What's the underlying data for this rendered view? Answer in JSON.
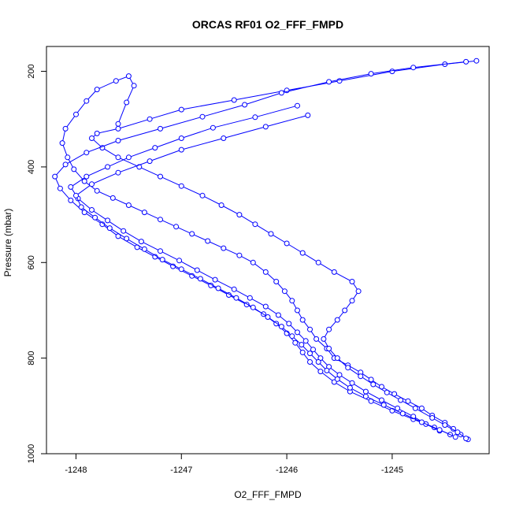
{
  "chart_data": {
    "type": "line",
    "title": "ORCAS RF01 O2_FFF_FMPD",
    "xlabel": "O2_FFF_FMPD",
    "ylabel": "Pressure (mbar)",
    "xlim": [
      -1248.28,
      -1244.08
    ],
    "ylim": [
      1000,
      148
    ],
    "y_reversed": true,
    "x_ticks": [
      -1248,
      -1247,
      -1246,
      -1245
    ],
    "y_ticks": [
      200,
      400,
      600,
      800,
      1000
    ],
    "marker": "open-circle",
    "line_color": "#0000ff",
    "grid": false,
    "legend": "none",
    "series": [
      {
        "x": [
          -1244.28,
          -1244.35,
          -1244.42,
          -1244.5,
          -1244.62,
          -1244.72,
          -1244.85,
          -1244.98,
          -1245.1,
          -1245.2,
          -1245.3,
          -1245.42,
          -1245.55,
          -1245.62,
          -1245.72,
          -1245.78,
          -1245.85,
          -1245.9,
          -1245.95,
          -1246.02,
          -1246.1,
          -1246.2,
          -1246.32,
          -1246.45,
          -1246.6,
          -1246.75,
          -1246.9,
          -1247.05,
          -1247.2,
          -1247.35,
          -1247.5,
          -1247.65,
          -1247.8,
          -1247.92,
          -1248.02,
          -1248.08,
          -1248.13,
          -1248.1,
          -1248.0,
          -1247.9,
          -1247.8,
          -1247.62,
          -1247.5,
          -1247.45,
          -1247.52,
          -1247.6
        ],
        "y": [
          970,
          960,
          948,
          935,
          920,
          905,
          890,
          875,
          860,
          845,
          830,
          815,
          800,
          780,
          760,
          740,
          720,
          700,
          680,
          660,
          640,
          620,
          600,
          585,
          570,
          555,
          540,
          525,
          510,
          495,
          480,
          465,
          450,
          430,
          405,
          380,
          350,
          320,
          290,
          262,
          238,
          220,
          210,
          230,
          265,
          310
        ]
      },
      {
        "x": [
          -1244.3,
          -1244.38,
          -1244.5,
          -1244.62,
          -1244.78,
          -1244.92,
          -1245.05,
          -1245.18,
          -1245.3,
          -1245.42,
          -1245.52,
          -1245.6,
          -1245.65,
          -1245.6,
          -1245.52,
          -1245.45,
          -1245.38,
          -1245.32,
          -1245.38,
          -1245.55,
          -1245.7,
          -1245.85,
          -1246.0,
          -1246.15,
          -1246.3,
          -1246.45,
          -1246.62,
          -1246.8,
          -1247.0,
          -1247.2,
          -1247.4,
          -1247.6,
          -1247.75,
          -1247.85,
          -1247.8,
          -1247.6,
          -1247.3,
          -1247.0,
          -1246.5,
          -1246.0,
          -1245.5,
          -1245.0,
          -1244.5,
          -1244.2
        ],
        "y": [
          968,
          955,
          940,
          925,
          905,
          888,
          872,
          855,
          838,
          820,
          800,
          780,
          760,
          740,
          720,
          700,
          680,
          660,
          640,
          620,
          600,
          580,
          560,
          540,
          520,
          500,
          480,
          460,
          440,
          420,
          400,
          380,
          360,
          340,
          330,
          320,
          300,
          280,
          260,
          240,
          220,
          200,
          185,
          178
        ]
      },
      {
        "x": [
          -1244.45,
          -1244.6,
          -1244.8,
          -1245.0,
          -1245.2,
          -1245.4,
          -1245.55,
          -1245.68,
          -1245.78,
          -1245.85,
          -1245.92,
          -1246.0,
          -1246.1,
          -1246.22,
          -1246.38,
          -1246.55,
          -1246.72,
          -1246.9,
          -1247.08,
          -1247.25,
          -1247.42,
          -1247.6,
          -1247.75,
          -1247.92,
          -1248.05,
          -1248.15,
          -1248.2,
          -1248.1,
          -1247.9,
          -1247.6,
          -1247.2,
          -1246.8,
          -1246.4,
          -1246.05,
          -1245.6,
          -1245.2,
          -1244.8,
          -1244.3
        ],
        "y": [
          960,
          945,
          928,
          910,
          890,
          870,
          850,
          828,
          808,
          788,
          768,
          748,
          728,
          708,
          688,
          668,
          648,
          628,
          608,
          588,
          568,
          545,
          520,
          495,
          470,
          445,
          420,
          395,
          370,
          345,
          320,
          295,
          270,
          245,
          222,
          205,
          192,
          180
        ]
      },
      {
        "x": [
          -1244.55,
          -1244.68,
          -1244.8,
          -1244.95,
          -1245.1,
          -1245.25,
          -1245.38,
          -1245.5,
          -1245.6,
          -1245.68,
          -1245.75,
          -1245.82,
          -1245.9,
          -1245.98,
          -1246.08,
          -1246.2,
          -1246.35,
          -1246.5,
          -1246.68,
          -1246.85,
          -1247.02,
          -1247.2,
          -1247.38,
          -1247.55,
          -1247.7,
          -1247.85,
          -1247.98,
          -1248.05,
          -1247.9,
          -1247.7,
          -1247.5,
          -1247.25,
          -1247.0,
          -1246.7,
          -1246.3,
          -1245.9
        ],
        "y": [
          952,
          938,
          922,
          905,
          888,
          870,
          852,
          835,
          818,
          800,
          782,
          764,
          746,
          728,
          710,
          692,
          674,
          656,
          636,
          616,
          596,
          576,
          556,
          534,
          512,
          490,
          466,
          442,
          420,
          400,
          380,
          360,
          340,
          318,
          296,
          272
        ]
      },
      {
        "x": [
          -1244.4,
          -1244.55,
          -1244.72,
          -1244.9,
          -1245.08,
          -1245.25,
          -1245.4,
          -1245.52,
          -1245.62,
          -1245.7,
          -1245.78,
          -1245.86,
          -1245.95,
          -1246.05,
          -1246.18,
          -1246.32,
          -1246.48,
          -1246.65,
          -1246.82,
          -1247.0,
          -1247.18,
          -1247.35,
          -1247.52,
          -1247.68,
          -1247.82,
          -1247.95,
          -1248.0,
          -1247.85,
          -1247.6,
          -1247.3,
          -1247.0,
          -1246.6,
          -1246.2,
          -1245.8
        ],
        "y": [
          965,
          950,
          934,
          916,
          898,
          880,
          862,
          844,
          826,
          808,
          790,
          772,
          754,
          734,
          714,
          694,
          674,
          654,
          634,
          614,
          594,
          572,
          550,
          528,
          506,
          484,
          460,
          436,
          412,
          388,
          364,
          340,
          316,
          292
        ]
      }
    ]
  }
}
